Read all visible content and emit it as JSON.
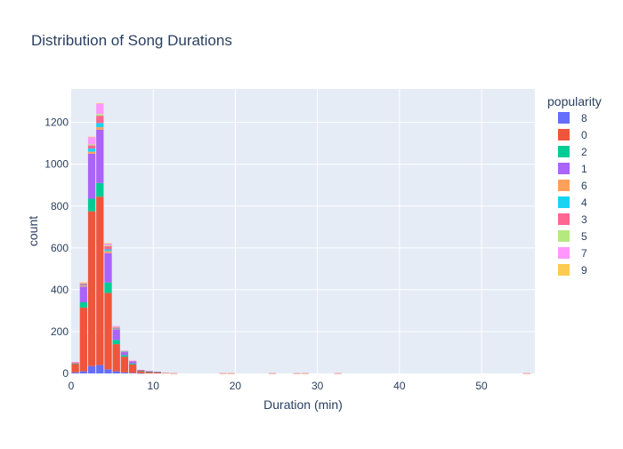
{
  "chart_data": {
    "type": "bar",
    "barmode": "stack",
    "title": "Distribution of Song Durations",
    "xlabel": "Duration (min)",
    "ylabel": "count",
    "xlim": [
      0,
      56.5
    ],
    "ylim": [
      0,
      1360
    ],
    "bin_width": 1,
    "x_ticks": [
      0,
      10,
      20,
      30,
      40,
      50
    ],
    "y_ticks": [
      0,
      200,
      400,
      600,
      800,
      1000,
      1200
    ],
    "background": "#e5ecf6",
    "grid": true,
    "legend": {
      "title": "popularity",
      "position": "right",
      "entries": [
        "8",
        "0",
        "2",
        "1",
        "6",
        "4",
        "3",
        "5",
        "7",
        "9"
      ]
    },
    "bin_starts": [
      0,
      1,
      2,
      3,
      4,
      5,
      6,
      7,
      8,
      9,
      10,
      11,
      12,
      18,
      19,
      24,
      27,
      28,
      32,
      55
    ],
    "series": [
      {
        "name": "8",
        "color": "#636efa",
        "values": [
          5,
          10,
          35,
          40,
          20,
          10,
          5,
          3,
          1,
          0,
          0,
          0,
          0,
          0,
          0,
          0,
          0,
          0,
          0,
          0
        ]
      },
      {
        "name": "0",
        "color": "#ef553b",
        "values": [
          40,
          305,
          740,
          805,
          365,
          130,
          75,
          40,
          10,
          8,
          6,
          2,
          1,
          1,
          1,
          1,
          1,
          1,
          1,
          1
        ]
      },
      {
        "name": "2",
        "color": "#00cc96",
        "values": [
          2,
          25,
          60,
          65,
          50,
          20,
          8,
          5,
          2,
          1,
          1,
          0,
          0,
          0,
          0,
          0,
          0,
          0,
          0,
          0
        ]
      },
      {
        "name": "1",
        "color": "#ab63fa",
        "values": [
          3,
          75,
          215,
          255,
          140,
          50,
          15,
          10,
          3,
          2,
          1,
          0,
          0,
          0,
          0,
          0,
          0,
          0,
          0,
          0
        ]
      },
      {
        "name": "6",
        "color": "#ffa15a",
        "values": [
          1,
          5,
          10,
          12,
          10,
          3,
          1,
          1,
          0,
          0,
          0,
          0,
          0,
          0,
          0,
          0,
          0,
          0,
          0,
          0
        ]
      },
      {
        "name": "4",
        "color": "#19d3f3",
        "values": [
          0,
          3,
          15,
          20,
          8,
          2,
          1,
          0,
          0,
          0,
          0,
          0,
          0,
          0,
          0,
          0,
          0,
          0,
          0,
          0
        ]
      },
      {
        "name": "3",
        "color": "#ff6692",
        "values": [
          2,
          7,
          15,
          35,
          15,
          5,
          2,
          1,
          1,
          0,
          0,
          0,
          0,
          0,
          0,
          0,
          0,
          0,
          0,
          0
        ]
      },
      {
        "name": "5",
        "color": "#b6e880",
        "values": [
          0,
          2,
          5,
          8,
          4,
          2,
          1,
          0,
          0,
          0,
          0,
          0,
          0,
          0,
          0,
          0,
          0,
          0,
          0,
          0
        ]
      },
      {
        "name": "7",
        "color": "#ff97ff",
        "values": [
          2,
          3,
          35,
          50,
          10,
          5,
          2,
          1,
          0,
          0,
          0,
          0,
          0,
          0,
          0,
          0,
          0,
          0,
          0,
          0
        ]
      },
      {
        "name": "9",
        "color": "#fecb52",
        "values": [
          0,
          1,
          2,
          2,
          1,
          0,
          0,
          0,
          0,
          0,
          0,
          0,
          0,
          0,
          0,
          0,
          0,
          0,
          0,
          0
        ]
      }
    ]
  }
}
